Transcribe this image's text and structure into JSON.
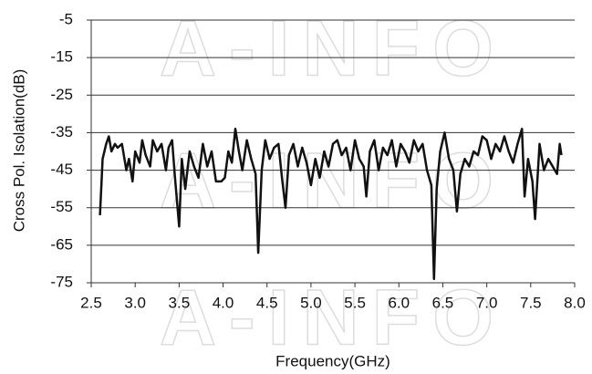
{
  "chart_data": {
    "type": "line",
    "xlabel": "Frequency(GHz)",
    "ylabel": "Cross Pol. Isolation(dB)",
    "watermark": "A-INFO",
    "color": "#111111",
    "grid": true,
    "xlim": [
      2.5,
      8
    ],
    "ylim": [
      -75,
      -5
    ],
    "xticks": [
      2.5,
      {
        "value": 3,
        "label": "3.0"
      },
      3.5,
      {
        "value": 4,
        "label": "4.0"
      },
      4.5,
      {
        "value": 5,
        "label": "5.0"
      },
      5.5,
      {
        "value": 6,
        "label": "6.0"
      },
      6.5,
      {
        "value": 7,
        "label": "7.0"
      },
      7.5,
      {
        "value": 8,
        "label": "8.0"
      }
    ],
    "yticks": [
      -5,
      -15,
      -25,
      -35,
      -45,
      -55,
      -65,
      -75
    ],
    "x": [
      2.6,
      2.63,
      2.67,
      2.7,
      2.73,
      2.77,
      2.8,
      2.85,
      2.9,
      2.93,
      2.97,
      3.0,
      3.05,
      3.08,
      3.12,
      3.17,
      3.2,
      3.25,
      3.3,
      3.35,
      3.38,
      3.42,
      3.45,
      3.5,
      3.53,
      3.57,
      3.62,
      3.67,
      3.72,
      3.77,
      3.82,
      3.87,
      3.92,
      3.98,
      4.02,
      4.06,
      4.1,
      4.14,
      4.18,
      4.22,
      4.27,
      4.32,
      4.37,
      4.4,
      4.44,
      4.48,
      4.53,
      4.58,
      4.63,
      4.67,
      4.71,
      4.75,
      4.8,
      4.85,
      4.9,
      4.95,
      5.0,
      5.05,
      5.1,
      5.15,
      5.2,
      5.25,
      5.3,
      5.35,
      5.4,
      5.45,
      5.5,
      5.55,
      5.6,
      5.63,
      5.67,
      5.72,
      5.77,
      5.82,
      5.87,
      5.92,
      5.97,
      6.02,
      6.07,
      6.12,
      6.17,
      6.22,
      6.27,
      6.32,
      6.37,
      6.4,
      6.43,
      6.47,
      6.52,
      6.57,
      6.62,
      6.66,
      6.7,
      6.75,
      6.8,
      6.85,
      6.9,
      6.95,
      7.0,
      7.05,
      7.1,
      7.15,
      7.2,
      7.25,
      7.3,
      7.35,
      7.4,
      7.43,
      7.47,
      7.52,
      7.55,
      7.6,
      7.65,
      7.7,
      7.75,
      7.8,
      7.83,
      7.85
    ],
    "values": [
      -57,
      -42,
      -38,
      -36,
      -40,
      -38,
      -39,
      -38,
      -45,
      -42,
      -48,
      -40,
      -43,
      -37,
      -41,
      -44,
      -37,
      -40,
      -38,
      -45,
      -39,
      -37,
      -46,
      -60,
      -42,
      -50,
      -40,
      -44,
      -47,
      -38,
      -44,
      -40,
      -48,
      -48,
      -47,
      -40,
      -43,
      -34,
      -40,
      -45,
      -37,
      -42,
      -46,
      -67,
      -45,
      -37,
      -42,
      -39,
      -38,
      -47,
      -55,
      -41,
      -38,
      -44,
      -39,
      -43,
      -49,
      -42,
      -47,
      -40,
      -44,
      -38,
      -37,
      -41,
      -39,
      -45,
      -37,
      -42,
      -44,
      -52,
      -40,
      -37,
      -45,
      -39,
      -41,
      -37,
      -44,
      -38,
      -40,
      -43,
      -37,
      -40,
      -38,
      -45,
      -49,
      -74,
      -50,
      -40,
      -35,
      -42,
      -45,
      -56,
      -46,
      -42,
      -44,
      -40,
      -41,
      -36,
      -37,
      -42,
      -38,
      -40,
      -36,
      -40,
      -43,
      -38,
      -34,
      -52,
      -42,
      -48,
      -58,
      -38,
      -45,
      -42,
      -44,
      -46,
      -38,
      -41
    ]
  }
}
